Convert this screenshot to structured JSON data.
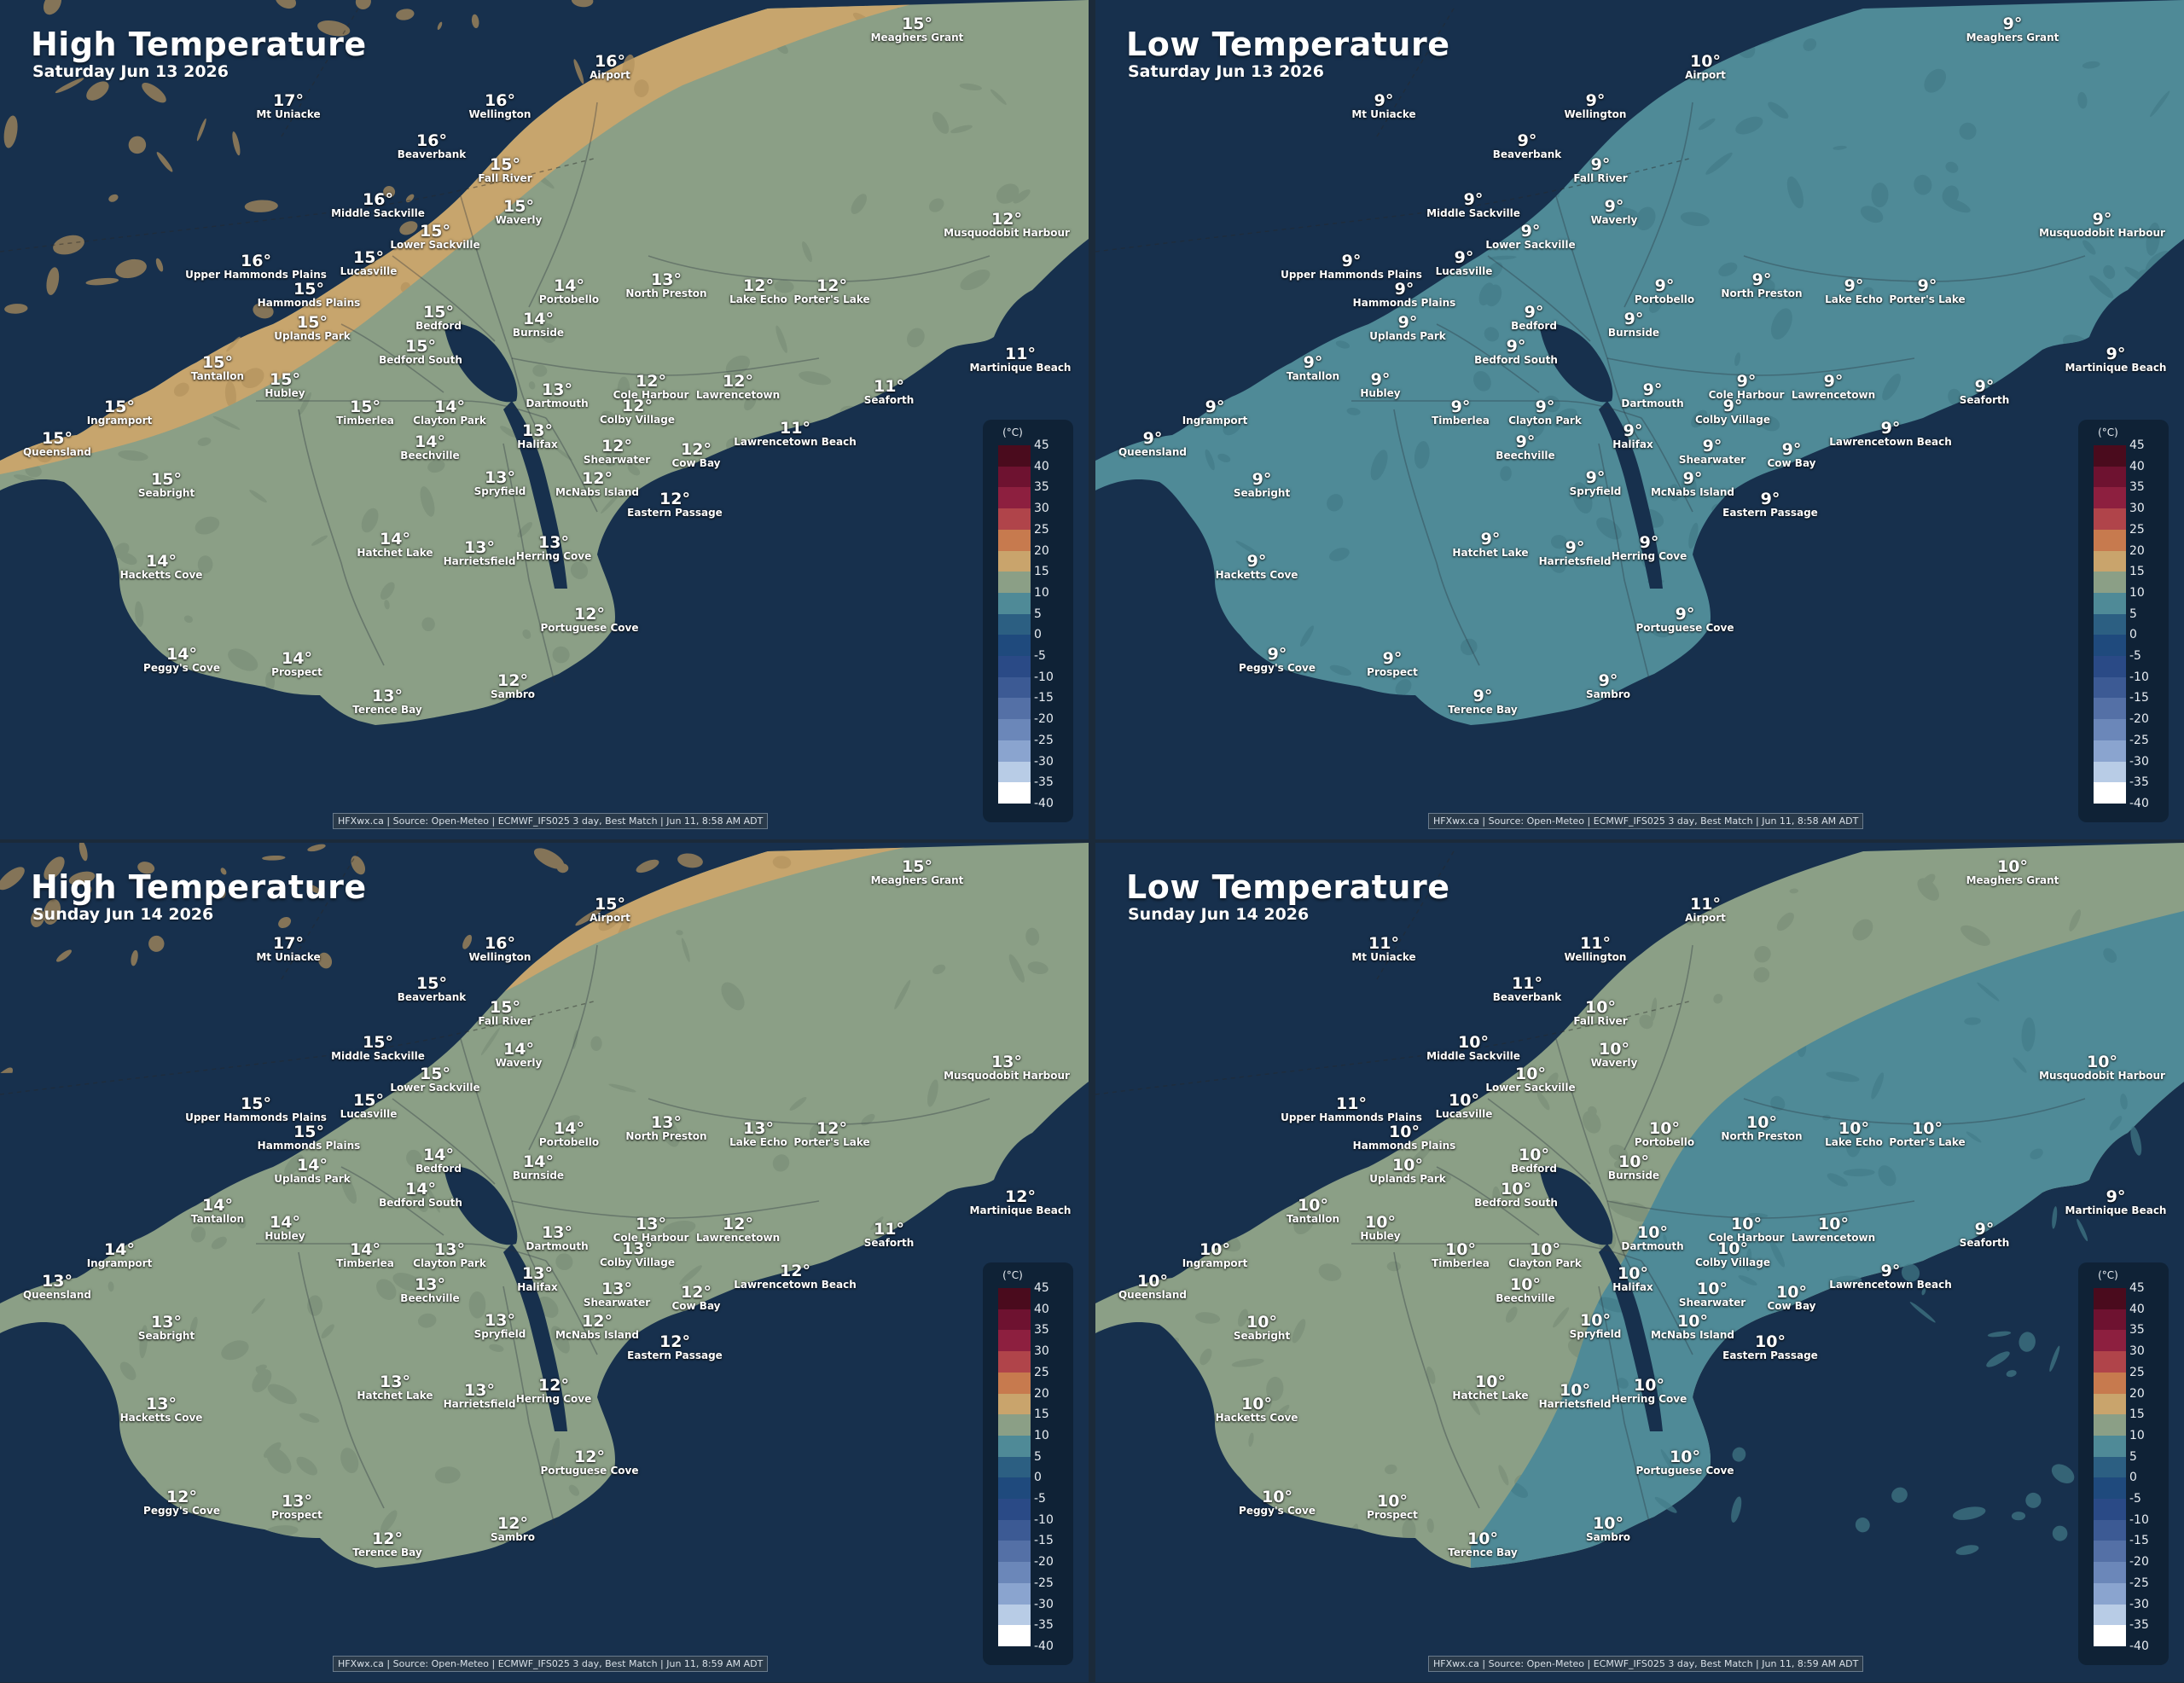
{
  "panels": [
    {
      "title": "High Temperature",
      "subtitle": "Saturday Jun 13 2026",
      "credit": "HFXwx.ca | Source: Open-Meteo | ECMWF_IFS025 3 day, Best Match | Jun 11, 8:58 AM ADT",
      "colors": {
        "warm": "#c7a56d",
        "mild": "#8b9f86",
        "cool": "#4f8a97",
        "land_dark_warm": "#b4935e",
        "land_dark_mild": "#7b8f78",
        "land_dark_cool": "#437b88",
        "water": "#17304d"
      },
      "zones": {
        "land": "mild",
        "warm_region": true,
        "cool_region": false
      },
      "stations": [
        {
          "name": "Meaghers Grant",
          "temp": "15°"
        },
        {
          "name": "Airport",
          "temp": "16°"
        },
        {
          "name": "Mt Uniacke",
          "temp": "17°"
        },
        {
          "name": "Wellington",
          "temp": "16°"
        },
        {
          "name": "Beaverbank",
          "temp": "16°"
        },
        {
          "name": "Fall River",
          "temp": "15°"
        },
        {
          "name": "Middle Sackville",
          "temp": "16°"
        },
        {
          "name": "Lower Sackville",
          "temp": "15°"
        },
        {
          "name": "Waverly",
          "temp": "15°"
        },
        {
          "name": "Musquodobit Harbour",
          "temp": "12°"
        },
        {
          "name": "Upper Hammonds Plains",
          "temp": "16°"
        },
        {
          "name": "Lucasville",
          "temp": "15°"
        },
        {
          "name": "Hammonds Plains",
          "temp": "15°"
        },
        {
          "name": "Portobello",
          "temp": "14°"
        },
        {
          "name": "North Preston",
          "temp": "13°"
        },
        {
          "name": "Lake Echo",
          "temp": "12°"
        },
        {
          "name": "Porter's Lake",
          "temp": "12°"
        },
        {
          "name": "Uplands Park",
          "temp": "15°"
        },
        {
          "name": "Bedford",
          "temp": "15°"
        },
        {
          "name": "Burnside",
          "temp": "14°"
        },
        {
          "name": "Bedford South",
          "temp": "15°"
        },
        {
          "name": "Martinique Beach",
          "temp": "11°"
        },
        {
          "name": "Tantallon",
          "temp": "15°"
        },
        {
          "name": "Hubley",
          "temp": "15°"
        },
        {
          "name": "Cole Harbour",
          "temp": "12°"
        },
        {
          "name": "Lawrencetown",
          "temp": "12°"
        },
        {
          "name": "Seaforth",
          "temp": "11°"
        },
        {
          "name": "Dartmouth",
          "temp": "13°"
        },
        {
          "name": "Ingramport",
          "temp": "15°"
        },
        {
          "name": "Timberlea",
          "temp": "15°"
        },
        {
          "name": "Clayton Park",
          "temp": "14°"
        },
        {
          "name": "Colby Village",
          "temp": "12°"
        },
        {
          "name": "Queensland",
          "temp": "15°"
        },
        {
          "name": "Halifax",
          "temp": "13°"
        },
        {
          "name": "Lawrencetown Beach",
          "temp": "11°"
        },
        {
          "name": "Beechville",
          "temp": "14°"
        },
        {
          "name": "Shearwater",
          "temp": "12°"
        },
        {
          "name": "Cow Bay",
          "temp": "12°"
        },
        {
          "name": "Seabright",
          "temp": "15°"
        },
        {
          "name": "Spryfield",
          "temp": "13°"
        },
        {
          "name": "McNabs Island",
          "temp": "12°"
        },
        {
          "name": "Eastern Passage",
          "temp": "12°"
        },
        {
          "name": "Hatchet Lake",
          "temp": "14°"
        },
        {
          "name": "Harrietsfield",
          "temp": "13°"
        },
        {
          "name": "Herring Cove",
          "temp": "13°"
        },
        {
          "name": "Hacketts Cove",
          "temp": "14°"
        },
        {
          "name": "Portuguese Cove",
          "temp": "12°"
        },
        {
          "name": "Peggy's Cove",
          "temp": "14°"
        },
        {
          "name": "Prospect",
          "temp": "14°"
        },
        {
          "name": "Sambro",
          "temp": "12°"
        },
        {
          "name": "Terence Bay",
          "temp": "13°"
        }
      ]
    },
    {
      "title": "Low Temperature",
      "subtitle": "Saturday Jun 13 2026",
      "credit": "HFXwx.ca | Source: Open-Meteo | ECMWF_IFS025 3 day, Best Match | Jun 11, 8:58 AM ADT",
      "colors": {
        "warm": "#c7a56d",
        "mild": "#8b9f86",
        "cool": "#4f8a97",
        "land_dark_warm": "#b4935e",
        "land_dark_mild": "#7b8f78",
        "land_dark_cool": "#437b88",
        "water": "#17304d"
      },
      "zones": {
        "land": "cool",
        "warm_region": false,
        "cool_region": false
      },
      "stations": [
        {
          "name": "Meaghers Grant",
          "temp": "9°"
        },
        {
          "name": "Airport",
          "temp": "10°"
        },
        {
          "name": "Mt Uniacke",
          "temp": "9°"
        },
        {
          "name": "Wellington",
          "temp": "9°"
        },
        {
          "name": "Beaverbank",
          "temp": "9°"
        },
        {
          "name": "Fall River",
          "temp": "9°"
        },
        {
          "name": "Middle Sackville",
          "temp": "9°"
        },
        {
          "name": "Lower Sackville",
          "temp": "9°"
        },
        {
          "name": "Waverly",
          "temp": "9°"
        },
        {
          "name": "Musquodobit Harbour",
          "temp": "9°"
        },
        {
          "name": "Upper Hammonds Plains",
          "temp": "9°"
        },
        {
          "name": "Lucasville",
          "temp": "9°"
        },
        {
          "name": "Hammonds Plains",
          "temp": "9°"
        },
        {
          "name": "Portobello",
          "temp": "9°"
        },
        {
          "name": "North Preston",
          "temp": "9°"
        },
        {
          "name": "Lake Echo",
          "temp": "9°"
        },
        {
          "name": "Porter's Lake",
          "temp": "9°"
        },
        {
          "name": "Uplands Park",
          "temp": "9°"
        },
        {
          "name": "Bedford",
          "temp": "9°"
        },
        {
          "name": "Burnside",
          "temp": "9°"
        },
        {
          "name": "Bedford South",
          "temp": "9°"
        },
        {
          "name": "Martinique Beach",
          "temp": "9°"
        },
        {
          "name": "Tantallon",
          "temp": "9°"
        },
        {
          "name": "Hubley",
          "temp": "9°"
        },
        {
          "name": "Cole Harbour",
          "temp": "9°"
        },
        {
          "name": "Lawrencetown",
          "temp": "9°"
        },
        {
          "name": "Seaforth",
          "temp": "9°"
        },
        {
          "name": "Dartmouth",
          "temp": "9°"
        },
        {
          "name": "Ingramport",
          "temp": "9°"
        },
        {
          "name": "Timberlea",
          "temp": "9°"
        },
        {
          "name": "Clayton Park",
          "temp": "9°"
        },
        {
          "name": "Colby Village",
          "temp": "9°"
        },
        {
          "name": "Queensland",
          "temp": "9°"
        },
        {
          "name": "Halifax",
          "temp": "9°"
        },
        {
          "name": "Lawrencetown Beach",
          "temp": "9°"
        },
        {
          "name": "Beechville",
          "temp": "9°"
        },
        {
          "name": "Shearwater",
          "temp": "9°"
        },
        {
          "name": "Cow Bay",
          "temp": "9°"
        },
        {
          "name": "Seabright",
          "temp": "9°"
        },
        {
          "name": "Spryfield",
          "temp": "9°"
        },
        {
          "name": "McNabs Island",
          "temp": "9°"
        },
        {
          "name": "Eastern Passage",
          "temp": "9°"
        },
        {
          "name": "Hatchet Lake",
          "temp": "9°"
        },
        {
          "name": "Harrietsfield",
          "temp": "9°"
        },
        {
          "name": "Herring Cove",
          "temp": "9°"
        },
        {
          "name": "Hacketts Cove",
          "temp": "9°"
        },
        {
          "name": "Portuguese Cove",
          "temp": "9°"
        },
        {
          "name": "Peggy's Cove",
          "temp": "9°"
        },
        {
          "name": "Prospect",
          "temp": "9°"
        },
        {
          "name": "Sambro",
          "temp": "9°"
        },
        {
          "name": "Terence Bay",
          "temp": "9°"
        }
      ]
    },
    {
      "title": "High Temperature",
      "subtitle": "Sunday Jun 14 2026",
      "credit": "HFXwx.ca | Source: Open-Meteo | ECMWF_IFS025 3 day, Best Match | Jun 11, 8:59 AM ADT",
      "colors": {
        "warm": "#c7a56d",
        "mild": "#8b9f86",
        "cool": "#4f8a97",
        "land_dark_warm": "#b4935e",
        "land_dark_mild": "#7b8f78",
        "land_dark_cool": "#437b88",
        "water": "#17304d"
      },
      "zones": {
        "land": "mild",
        "warm_region": true,
        "cool_region": false
      },
      "stations": [
        {
          "name": "Meaghers Grant",
          "temp": "15°"
        },
        {
          "name": "Airport",
          "temp": "15°"
        },
        {
          "name": "Mt Uniacke",
          "temp": "17°"
        },
        {
          "name": "Wellington",
          "temp": "16°"
        },
        {
          "name": "Beaverbank",
          "temp": "15°"
        },
        {
          "name": "Fall River",
          "temp": "15°"
        },
        {
          "name": "Middle Sackville",
          "temp": "15°"
        },
        {
          "name": "Lower Sackville",
          "temp": "15°"
        },
        {
          "name": "Waverly",
          "temp": "14°"
        },
        {
          "name": "Musquodobit Harbour",
          "temp": "13°"
        },
        {
          "name": "Upper Hammonds Plains",
          "temp": "15°"
        },
        {
          "name": "Lucasville",
          "temp": "15°"
        },
        {
          "name": "Hammonds Plains",
          "temp": "15°"
        },
        {
          "name": "Portobello",
          "temp": "14°"
        },
        {
          "name": "North Preston",
          "temp": "13°"
        },
        {
          "name": "Lake Echo",
          "temp": "13°"
        },
        {
          "name": "Porter's Lake",
          "temp": "12°"
        },
        {
          "name": "Uplands Park",
          "temp": "14°"
        },
        {
          "name": "Bedford",
          "temp": "14°"
        },
        {
          "name": "Burnside",
          "temp": "14°"
        },
        {
          "name": "Bedford South",
          "temp": "14°"
        },
        {
          "name": "Martinique Beach",
          "temp": "12°"
        },
        {
          "name": "Tantallon",
          "temp": "14°"
        },
        {
          "name": "Hubley",
          "temp": "14°"
        },
        {
          "name": "Cole Harbour",
          "temp": "13°"
        },
        {
          "name": "Lawrencetown",
          "temp": "12°"
        },
        {
          "name": "Seaforth",
          "temp": "11°"
        },
        {
          "name": "Dartmouth",
          "temp": "13°"
        },
        {
          "name": "Ingramport",
          "temp": "14°"
        },
        {
          "name": "Timberlea",
          "temp": "14°"
        },
        {
          "name": "Clayton Park",
          "temp": "13°"
        },
        {
          "name": "Colby Village",
          "temp": "13°"
        },
        {
          "name": "Queensland",
          "temp": "13°"
        },
        {
          "name": "Halifax",
          "temp": "13°"
        },
        {
          "name": "Lawrencetown Beach",
          "temp": "12°"
        },
        {
          "name": "Beechville",
          "temp": "13°"
        },
        {
          "name": "Shearwater",
          "temp": "13°"
        },
        {
          "name": "Cow Bay",
          "temp": "12°"
        },
        {
          "name": "Seabright",
          "temp": "13°"
        },
        {
          "name": "Spryfield",
          "temp": "13°"
        },
        {
          "name": "McNabs Island",
          "temp": "12°"
        },
        {
          "name": "Eastern Passage",
          "temp": "12°"
        },
        {
          "name": "Hatchet Lake",
          "temp": "13°"
        },
        {
          "name": "Harrietsfield",
          "temp": "13°"
        },
        {
          "name": "Herring Cove",
          "temp": "12°"
        },
        {
          "name": "Hacketts Cove",
          "temp": "13°"
        },
        {
          "name": "Portuguese Cove",
          "temp": "12°"
        },
        {
          "name": "Peggy's Cove",
          "temp": "12°"
        },
        {
          "name": "Prospect",
          "temp": "13°"
        },
        {
          "name": "Sambro",
          "temp": "12°"
        },
        {
          "name": "Terence Bay",
          "temp": "12°"
        }
      ]
    },
    {
      "title": "Low Temperature",
      "subtitle": "Sunday Jun 14 2026",
      "credit": "HFXwx.ca | Source: Open-Meteo | ECMWF_IFS025 3 day, Best Match | Jun 11, 8:59 AM ADT",
      "colors": {
        "warm": "#c7a56d",
        "mild": "#8b9f86",
        "cool": "#4f8a97",
        "land_dark_warm": "#b4935e",
        "land_dark_mild": "#7b8f78",
        "land_dark_cool": "#437b88",
        "water": "#17304d"
      },
      "zones": {
        "land": "mild",
        "warm_region": false,
        "cool_region": true
      },
      "stations": [
        {
          "name": "Meaghers Grant",
          "temp": "10°"
        },
        {
          "name": "Airport",
          "temp": "11°"
        },
        {
          "name": "Mt Uniacke",
          "temp": "11°"
        },
        {
          "name": "Wellington",
          "temp": "11°"
        },
        {
          "name": "Beaverbank",
          "temp": "11°"
        },
        {
          "name": "Fall River",
          "temp": "10°"
        },
        {
          "name": "Middle Sackville",
          "temp": "10°"
        },
        {
          "name": "Lower Sackville",
          "temp": "10°"
        },
        {
          "name": "Waverly",
          "temp": "10°"
        },
        {
          "name": "Musquodobit Harbour",
          "temp": "10°"
        },
        {
          "name": "Upper Hammonds Plains",
          "temp": "11°"
        },
        {
          "name": "Lucasville",
          "temp": "10°"
        },
        {
          "name": "Hammonds Plains",
          "temp": "10°"
        },
        {
          "name": "Portobello",
          "temp": "10°"
        },
        {
          "name": "North Preston",
          "temp": "10°"
        },
        {
          "name": "Lake Echo",
          "temp": "10°"
        },
        {
          "name": "Porter's Lake",
          "temp": "10°"
        },
        {
          "name": "Uplands Park",
          "temp": "10°"
        },
        {
          "name": "Bedford",
          "temp": "10°"
        },
        {
          "name": "Burnside",
          "temp": "10°"
        },
        {
          "name": "Bedford South",
          "temp": "10°"
        },
        {
          "name": "Martinique Beach",
          "temp": "9°"
        },
        {
          "name": "Tantallon",
          "temp": "10°"
        },
        {
          "name": "Hubley",
          "temp": "10°"
        },
        {
          "name": "Cole Harbour",
          "temp": "10°"
        },
        {
          "name": "Lawrencetown",
          "temp": "10°"
        },
        {
          "name": "Seaforth",
          "temp": "9°"
        },
        {
          "name": "Dartmouth",
          "temp": "10°"
        },
        {
          "name": "Ingramport",
          "temp": "10°"
        },
        {
          "name": "Timberlea",
          "temp": "10°"
        },
        {
          "name": "Clayton Park",
          "temp": "10°"
        },
        {
          "name": "Colby Village",
          "temp": "10°"
        },
        {
          "name": "Queensland",
          "temp": "10°"
        },
        {
          "name": "Halifax",
          "temp": "10°"
        },
        {
          "name": "Lawrencetown Beach",
          "temp": "9°"
        },
        {
          "name": "Beechville",
          "temp": "10°"
        },
        {
          "name": "Shearwater",
          "temp": "10°"
        },
        {
          "name": "Cow Bay",
          "temp": "10°"
        },
        {
          "name": "Seabright",
          "temp": "10°"
        },
        {
          "name": "Spryfield",
          "temp": "10°"
        },
        {
          "name": "McNabs Island",
          "temp": "10°"
        },
        {
          "name": "Eastern Passage",
          "temp": "10°"
        },
        {
          "name": "Hatchet Lake",
          "temp": "10°"
        },
        {
          "name": "Harrietsfield",
          "temp": "10°"
        },
        {
          "name": "Herring Cove",
          "temp": "10°"
        },
        {
          "name": "Hacketts Cove",
          "temp": "10°"
        },
        {
          "name": "Portuguese Cove",
          "temp": "10°"
        },
        {
          "name": "Peggy's Cove",
          "temp": "10°"
        },
        {
          "name": "Prospect",
          "temp": "10°"
        },
        {
          "name": "Sambro",
          "temp": "10°"
        },
        {
          "name": "Terence Bay",
          "temp": "10°"
        }
      ]
    }
  ],
  "legend": {
    "unit": "(°C)",
    "stops": [
      {
        "label": "45",
        "color": "#2b0610"
      },
      {
        "label": "40",
        "color": "#4a0b1d"
      },
      {
        "label": "35",
        "color": "#6e1230"
      },
      {
        "label": "30",
        "color": "#8d1f3f"
      },
      {
        "label": "25",
        "color": "#b0444a"
      },
      {
        "label": "20",
        "color": "#c77a4e"
      },
      {
        "label": "15",
        "color": "#c9a46c"
      },
      {
        "label": "10",
        "color": "#8b9f86"
      },
      {
        "label": "5",
        "color": "#4f8a97"
      },
      {
        "label": "0",
        "color": "#2c5f82"
      },
      {
        "label": "-5",
        "color": "#1f4a7d"
      },
      {
        "label": "-10",
        "color": "#2a4a86"
      },
      {
        "label": "-15",
        "color": "#3c5a94"
      },
      {
        "label": "-20",
        "color": "#5470a6"
      },
      {
        "label": "-25",
        "color": "#6b87b9"
      },
      {
        "label": "-30",
        "color": "#8aa4cf"
      },
      {
        "label": "-35",
        "color": "#b8cce6"
      },
      {
        "label": "-40",
        "color": "#ffffff"
      }
    ]
  }
}
